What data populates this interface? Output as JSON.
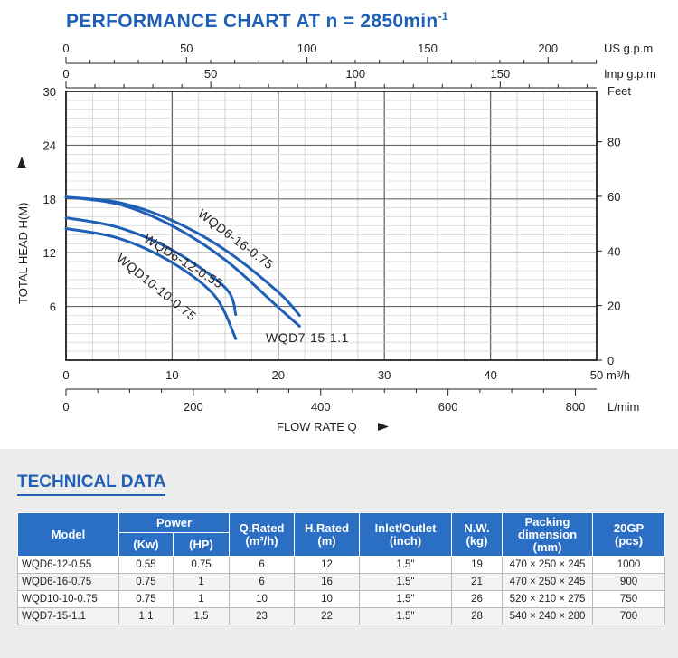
{
  "chart": {
    "title": "PERFORMANCE CHART AT n = 2850min",
    "title_sup": "-1",
    "colors": {
      "curve": "#1f5fb5",
      "grid": "#c9c9c9",
      "major_grid": "#666666",
      "axis": "#222222",
      "accent": "#1f5fb5"
    }
  },
  "chart_data": {
    "type": "line",
    "title": "PERFORMANCE CHART AT n = 2850min-1",
    "xlabel": "FLOW RATE Q",
    "ylabel": "TOTAL HEAD H(M)",
    "x_unit": "m³/h",
    "xlim": [
      0,
      50
    ],
    "ylim": [
      0,
      30
    ],
    "x_ticks": [
      0,
      10,
      20,
      30,
      40,
      50
    ],
    "y_ticks": [
      6,
      12,
      18,
      24,
      30
    ],
    "grid": true,
    "secondary_axes": {
      "us_gpm": {
        "label": "US g.p.m",
        "ticks": [
          0,
          50,
          100,
          150,
          200
        ]
      },
      "imp_gpm": {
        "label": "Imp g.p.m",
        "ticks": [
          0,
          50,
          100,
          150
        ]
      },
      "feet": {
        "label": "Feet",
        "ticks": [
          0,
          20,
          40,
          60,
          80
        ]
      },
      "lmin": {
        "label": "L/mim",
        "ticks": [
          0,
          200,
          400,
          600,
          800
        ]
      }
    },
    "series": [
      {
        "name": "WQD6-16-0.75",
        "x": [
          0,
          5,
          10,
          15,
          20,
          22
        ],
        "y": [
          18.2,
          17.6,
          15.6,
          12.3,
          7.6,
          5.0
        ]
      },
      {
        "name": "WQD7-15-1.1",
        "x": [
          0,
          5,
          10,
          15,
          20,
          22
        ],
        "y": [
          18.2,
          17.4,
          15.0,
          11.2,
          5.9,
          3.8
        ]
      },
      {
        "name": "WQD6-12-0.55",
        "x": [
          0,
          5,
          10,
          15,
          16
        ],
        "y": [
          15.9,
          14.8,
          12.3,
          8.1,
          5.1
        ]
      },
      {
        "name": "WQD10-10-0.75",
        "x": [
          0,
          5,
          10,
          14,
          16
        ],
        "y": [
          14.7,
          13.6,
          10.9,
          7.2,
          2.4
        ]
      }
    ]
  },
  "tech": {
    "title": "TECHNICAL DATA",
    "headers": {
      "model": "Model",
      "power": "Power",
      "kw": "(Kw)",
      "hp": "(HP)",
      "q_rated": "Q.Rated",
      "q_unit": "(m³/h)",
      "h_rated": "H.Rated",
      "h_unit": "(m)",
      "inlet": "Inlet/Outlet",
      "inlet_unit": "(inch)",
      "nw": "N.W.",
      "nw_unit": "(kg)",
      "packing": "Packing",
      "packing2": "dimension",
      "packing_unit": "(mm)",
      "gp": "20GP",
      "gp_unit": "(pcs)"
    },
    "rows": [
      {
        "model": "WQD6-12-0.55",
        "kw": "0.55",
        "hp": "0.75",
        "q": "6",
        "h": "12",
        "inlet": "1.5\"",
        "nw": "19",
        "pack": "470 × 250 × 245",
        "gp": "1000"
      },
      {
        "model": "WQD6-16-0.75",
        "kw": "0.75",
        "hp": "1",
        "q": "6",
        "h": "16",
        "inlet": "1.5\"",
        "nw": "21",
        "pack": "470 × 250 × 245",
        "gp": "900"
      },
      {
        "model": "WQD10-10-0.75",
        "kw": "0.75",
        "hp": "1",
        "q": "10",
        "h": "10",
        "inlet": "1.5\"",
        "nw": "26",
        "pack": "520 × 210 × 275",
        "gp": "750"
      },
      {
        "model": "WQD7-15-1.1",
        "kw": "1.1",
        "hp": "1.5",
        "q": "23",
        "h": "22",
        "inlet": "1.5\"",
        "nw": "28",
        "pack": "540 × 240 × 280",
        "gp": "700"
      }
    ]
  }
}
